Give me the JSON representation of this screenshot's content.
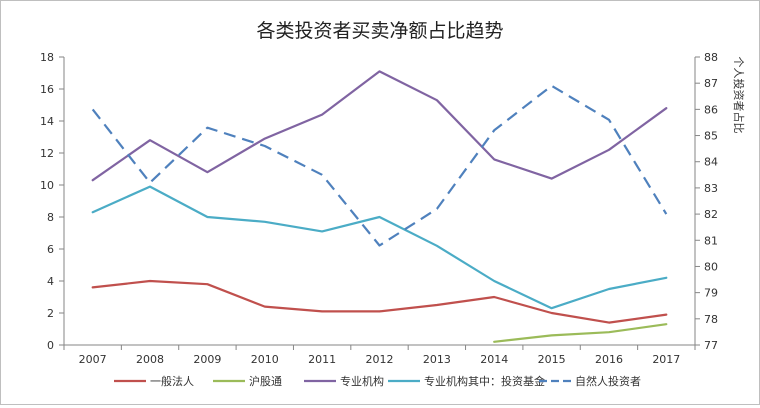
{
  "chart_data": {
    "type": "line",
    "title": "各类投资者买卖净额占比趋势",
    "categories": [
      "2007",
      "2008",
      "2009",
      "2010",
      "2011",
      "2012",
      "2013",
      "2014",
      "2015",
      "2016",
      "2017"
    ],
    "y_left": {
      "range": [
        0,
        18
      ],
      "ticks": [
        "0",
        "2",
        "4",
        "6",
        "8",
        "10",
        "12",
        "14",
        "16",
        "18"
      ],
      "label": ""
    },
    "y_right": {
      "range": [
        77,
        88
      ],
      "ticks": [
        "77",
        "78",
        "79",
        "80",
        "81",
        "82",
        "83",
        "84",
        "85",
        "86",
        "87",
        "88"
      ],
      "label": "个人投资者占比"
    },
    "series": [
      {
        "name": "一般法人",
        "axis": "left",
        "color": "#c0504d",
        "dash": false,
        "values": [
          3.6,
          4.0,
          3.8,
          2.4,
          2.1,
          2.1,
          2.5,
          3.0,
          2.0,
          1.4,
          1.9
        ]
      },
      {
        "name": "沪股通",
        "axis": "left",
        "color": "#9bbb59",
        "dash": false,
        "values": [
          null,
          null,
          null,
          null,
          null,
          null,
          null,
          0.2,
          0.6,
          0.8,
          1.3
        ]
      },
      {
        "name": "专业机构",
        "axis": "left",
        "color": "#8064a2",
        "dash": false,
        "values": [
          10.3,
          12.8,
          10.8,
          12.9,
          14.4,
          17.1,
          15.3,
          11.6,
          10.4,
          12.2,
          14.8
        ]
      },
      {
        "name": "专业机构其中：投资基金",
        "axis": "left",
        "color": "#4bacc6",
        "dash": false,
        "values": [
          8.3,
          9.9,
          8.0,
          7.7,
          7.1,
          8.0,
          6.2,
          4.0,
          2.3,
          3.5,
          4.2
        ]
      },
      {
        "name": "自然人投资者",
        "axis": "right",
        "color": "#4f81bd",
        "dash": true,
        "values": [
          86.0,
          83.2,
          85.3,
          84.6,
          83.5,
          80.8,
          82.2,
          85.2,
          86.9,
          85.6,
          82.0
        ]
      }
    ],
    "legend_position": "bottom",
    "grid": false
  }
}
